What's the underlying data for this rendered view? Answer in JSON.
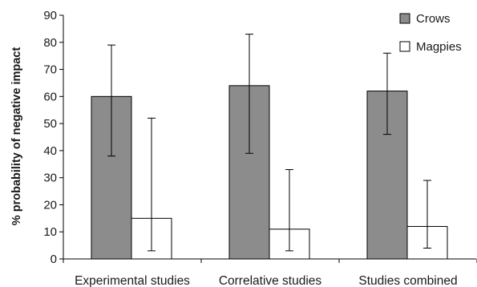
{
  "chart_data": {
    "type": "bar",
    "ylabel": "% probability of negative impact",
    "ylim": [
      0,
      90
    ],
    "yticks": [
      0,
      10,
      20,
      30,
      40,
      50,
      60,
      70,
      80,
      90
    ],
    "categories": [
      "Experimental studies",
      "Correlative studies",
      "Studies combined"
    ],
    "series": [
      {
        "name": "Crows",
        "color": "#8c8c8c",
        "values": [
          60,
          64,
          62
        ],
        "err_low": [
          38,
          39,
          46
        ],
        "err_high": [
          79,
          83,
          76
        ]
      },
      {
        "name": "Magpies",
        "color": "#ffffff",
        "values": [
          15,
          11,
          12
        ],
        "err_low": [
          3,
          3,
          4
        ],
        "err_high": [
          52,
          33,
          29
        ]
      }
    ],
    "legend": "top-right",
    "grid": false
  }
}
